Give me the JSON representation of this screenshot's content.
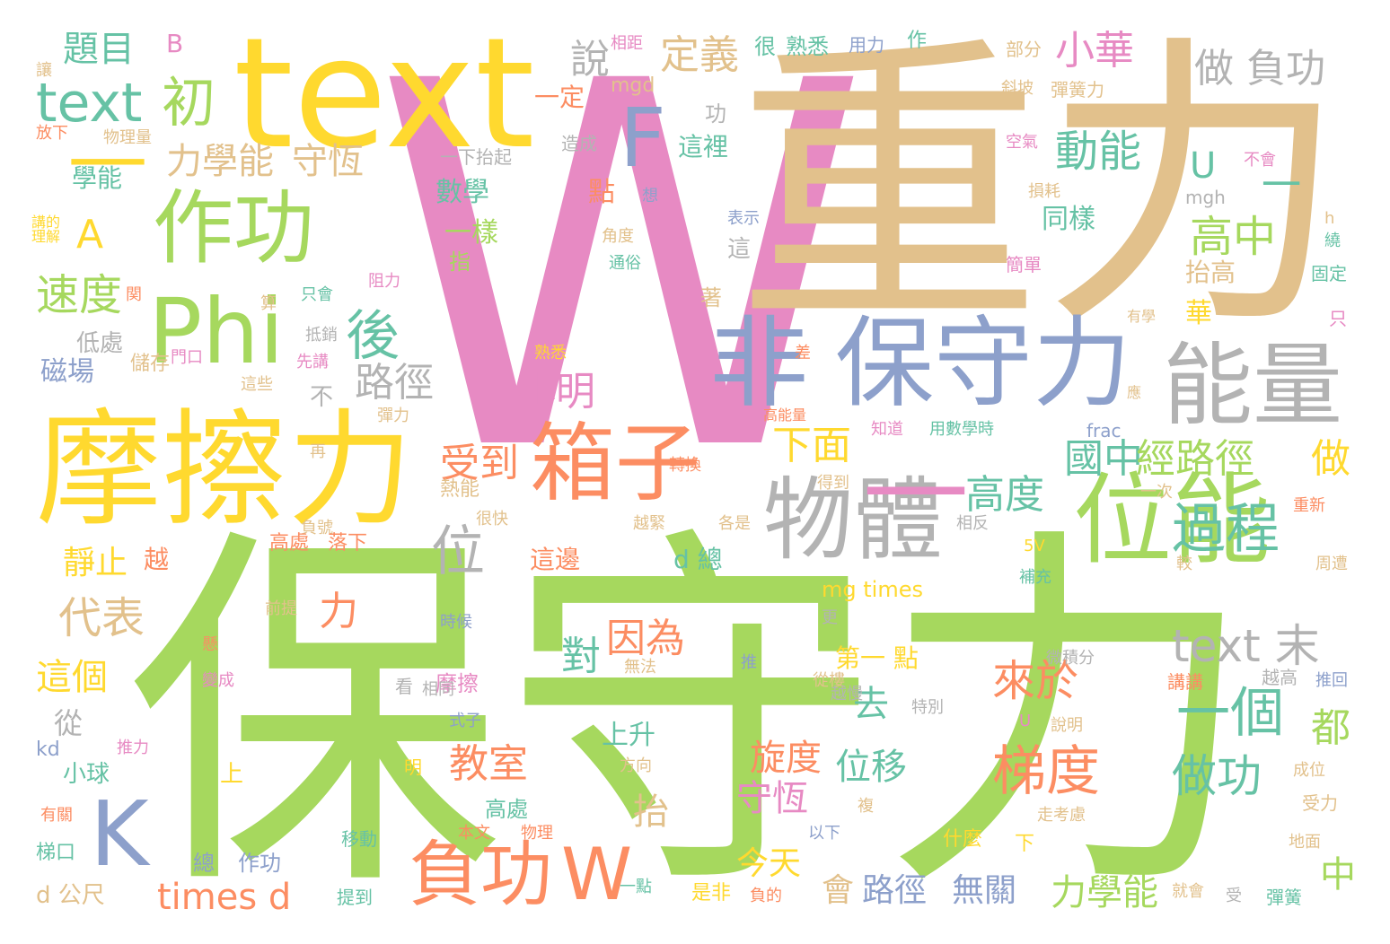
{
  "palette": {
    "green": "#a6d85e",
    "tan": "#e2c18c",
    "pink": "#e78ac3",
    "yellow": "#ffd92f",
    "orange": "#fc8d62",
    "blue": "#8da0cb",
    "gray": "#b3b3b3",
    "teal": "#66c2a5"
  },
  "words": {
    "w_big": "W",
    "zhongli": "重力",
    "baoshouli": "保守力",
    "text_big": "text",
    "moca": "摩擦力",
    "fei": "非",
    "baoshouli2": "保守力",
    "weineng": "位能",
    "nengliang": "能量",
    "wuti": "物體",
    "xiangzi": "箱子",
    "zuogong": "作功",
    "phi": "Phi",
    "k": "K",
    "fugong": "負功",
    "w_small": "W",
    "f": "F",
    "text2": "text",
    "chu": "初",
    "timu": "題目",
    "b": "B",
    "dash1": "—",
    "dash2": "—",
    "dingyi": "定義",
    "xiaohua": "小華",
    "zuofugong": "做 負功",
    "shuo": "說",
    "xiangju": "相距",
    "hen": "很",
    "shuxi": "熟悉",
    "yongli": "用力",
    "zuo2": "作",
    "bufen": "部分",
    "rang": "讓",
    "fangxia": "放下",
    "wuliliang": "物理量",
    "yiding": "一定",
    "mgd": "mgd",
    "gong": "功",
    "xiepo": "斜坡",
    "tanhuangli": "彈簧力",
    "lixuneng": "力學能",
    "shouheng": "守恆",
    "zhefa": "這裡",
    "yixiataiqi": "一下抬起",
    "zaocheng": "造成",
    "xueneng": "學能",
    "dongneng": "動能",
    "u": "U",
    "dash3": "一",
    "kongqi": "空氣",
    "buhui": "不會",
    "shuxue": "數學",
    "dian": "點",
    "xiang": "想",
    "biaoshi": "表示",
    "sunhao": "損耗",
    "mgh": "mgh",
    "h": "h",
    "tongyang": "同樣",
    "a": "A",
    "yiyang": "一樣",
    "gaozhong": "高中",
    "jiaodu": "角度",
    "tongsu": "通俗",
    "zhi": "指",
    "zhe": "這",
    "taigao": "抬高",
    "jiandan": "簡單",
    "rao": "繞",
    "guding": "固定",
    "jiangdelijie": "講的 理解",
    "sudu": "速度",
    "guan": "関",
    "suan": "算",
    "zhihui": "只會",
    "zuli": "阻力",
    "zhuo": "著",
    "hua": "華",
    "youxue": "有學",
    "zhi2": "只",
    "hou": "後",
    "diqu": "低處",
    "dixiao": "抵銷",
    "menkou": "門口",
    "xianjiang": "先講",
    "shuxi2": "熟悉",
    "cha": "差",
    "cichang": "磁場",
    "chucun": "儲存",
    "zhexie": "這些",
    "lujing": "路徑",
    "bu": "不",
    "xiaoming": "小明",
    "ying": "應",
    "tanli": "彈力",
    "gaonengliang": "高能量",
    "zhidao": "知道",
    "yongshuxueshi": "用數學時",
    "frac": "frac",
    "guozhong": "國中",
    "jinglujing": "經路徑",
    "zuo": "做",
    "xiamian": "下面",
    "shoudao": "受到",
    "zai": "再",
    "zhuanhuan": "轉換",
    "rebeng": "熱能",
    "dedao": "得到",
    "yici": "一次",
    "chongxin": "重新",
    "gaodu": "高度",
    "guocheng": "過程",
    "henkuai": "很快",
    "fuhao": "負號",
    "yuejin": "越緊",
    "geshi": "各是",
    "xiangfan": "相反",
    "jingzhi": "靜止",
    "yue": "越",
    "gaochu": "高處",
    "luoxia": "落下",
    "zhebian": "這邊",
    "d_zong": "d 總",
    "wei": "位",
    "5v": "5V",
    "buchong": "補充",
    "jiao": "較",
    "zhouwei": "周遭",
    "tidu": "梯度",
    "yige": "一個",
    "daibiao": "代表",
    "li": "力",
    "qianti": "前提",
    "mgtimes": "mg times",
    "yinwei": "因為",
    "laiyu": "來於",
    "text_mo": "text 末",
    "dui": "對",
    "geng": "更",
    "di1dian": "第一 點",
    "shihou": "時候",
    "xuan": "懸",
    "wufa": "無法",
    "tui": "推",
    "weijifen": "微積分",
    "yuegao": "越高",
    "zhege": "這個",
    "moca2": "摩擦",
    "qu": "去",
    "congl": "從樓",
    "jiangjiang": "講講",
    "tuihui": "推回",
    "biancheng": "變成",
    "kan": "看",
    "xiangtong": "相同",
    "yueman": "越慢",
    "tebie": "特別",
    "dou": "都",
    "cong": "從",
    "shiizi": "式子",
    "u2": "U",
    "shuoming": "說明",
    "kd": "kd",
    "tuili": "推力",
    "ming": "明",
    "shangsheng": "上升",
    "jiaoshi": "教室",
    "xuandu": "旋度",
    "weiyi": "位移",
    "zuogong2": "做功",
    "fangxiang": "方向",
    "chengwei": "成位",
    "xiaoqiu": "小球",
    "shang": "上",
    "shouheng2": "守恆",
    "tai": "抬",
    "shouli": "受力",
    "youguan": "有關",
    "gaochu2": "高處",
    "fu": "複",
    "zoukaolu": "走考慮",
    "yixia": "以下",
    "benwen": "本文",
    "wuli": "物理",
    "shenme": "什麼",
    "xia": "下",
    "dimian": "地面",
    "tikou": "梯口",
    "yidong": "移動",
    "zong": "總",
    "zuogong3": "作功",
    "jintian": "今天",
    "zhong": "中",
    "timesd": "times d",
    "hui": "會",
    "lujing2": "路徑",
    "wuguan": "無關",
    "lixuneng2": "力學能",
    "yidian": "一點",
    "shifei": "是非",
    "fude": "負的",
    "jiuhui": "就會",
    "shou": "受",
    "tanhuang": "彈簧",
    "d_gongchi": "d 公尺",
    "tidao": "提到"
  }
}
